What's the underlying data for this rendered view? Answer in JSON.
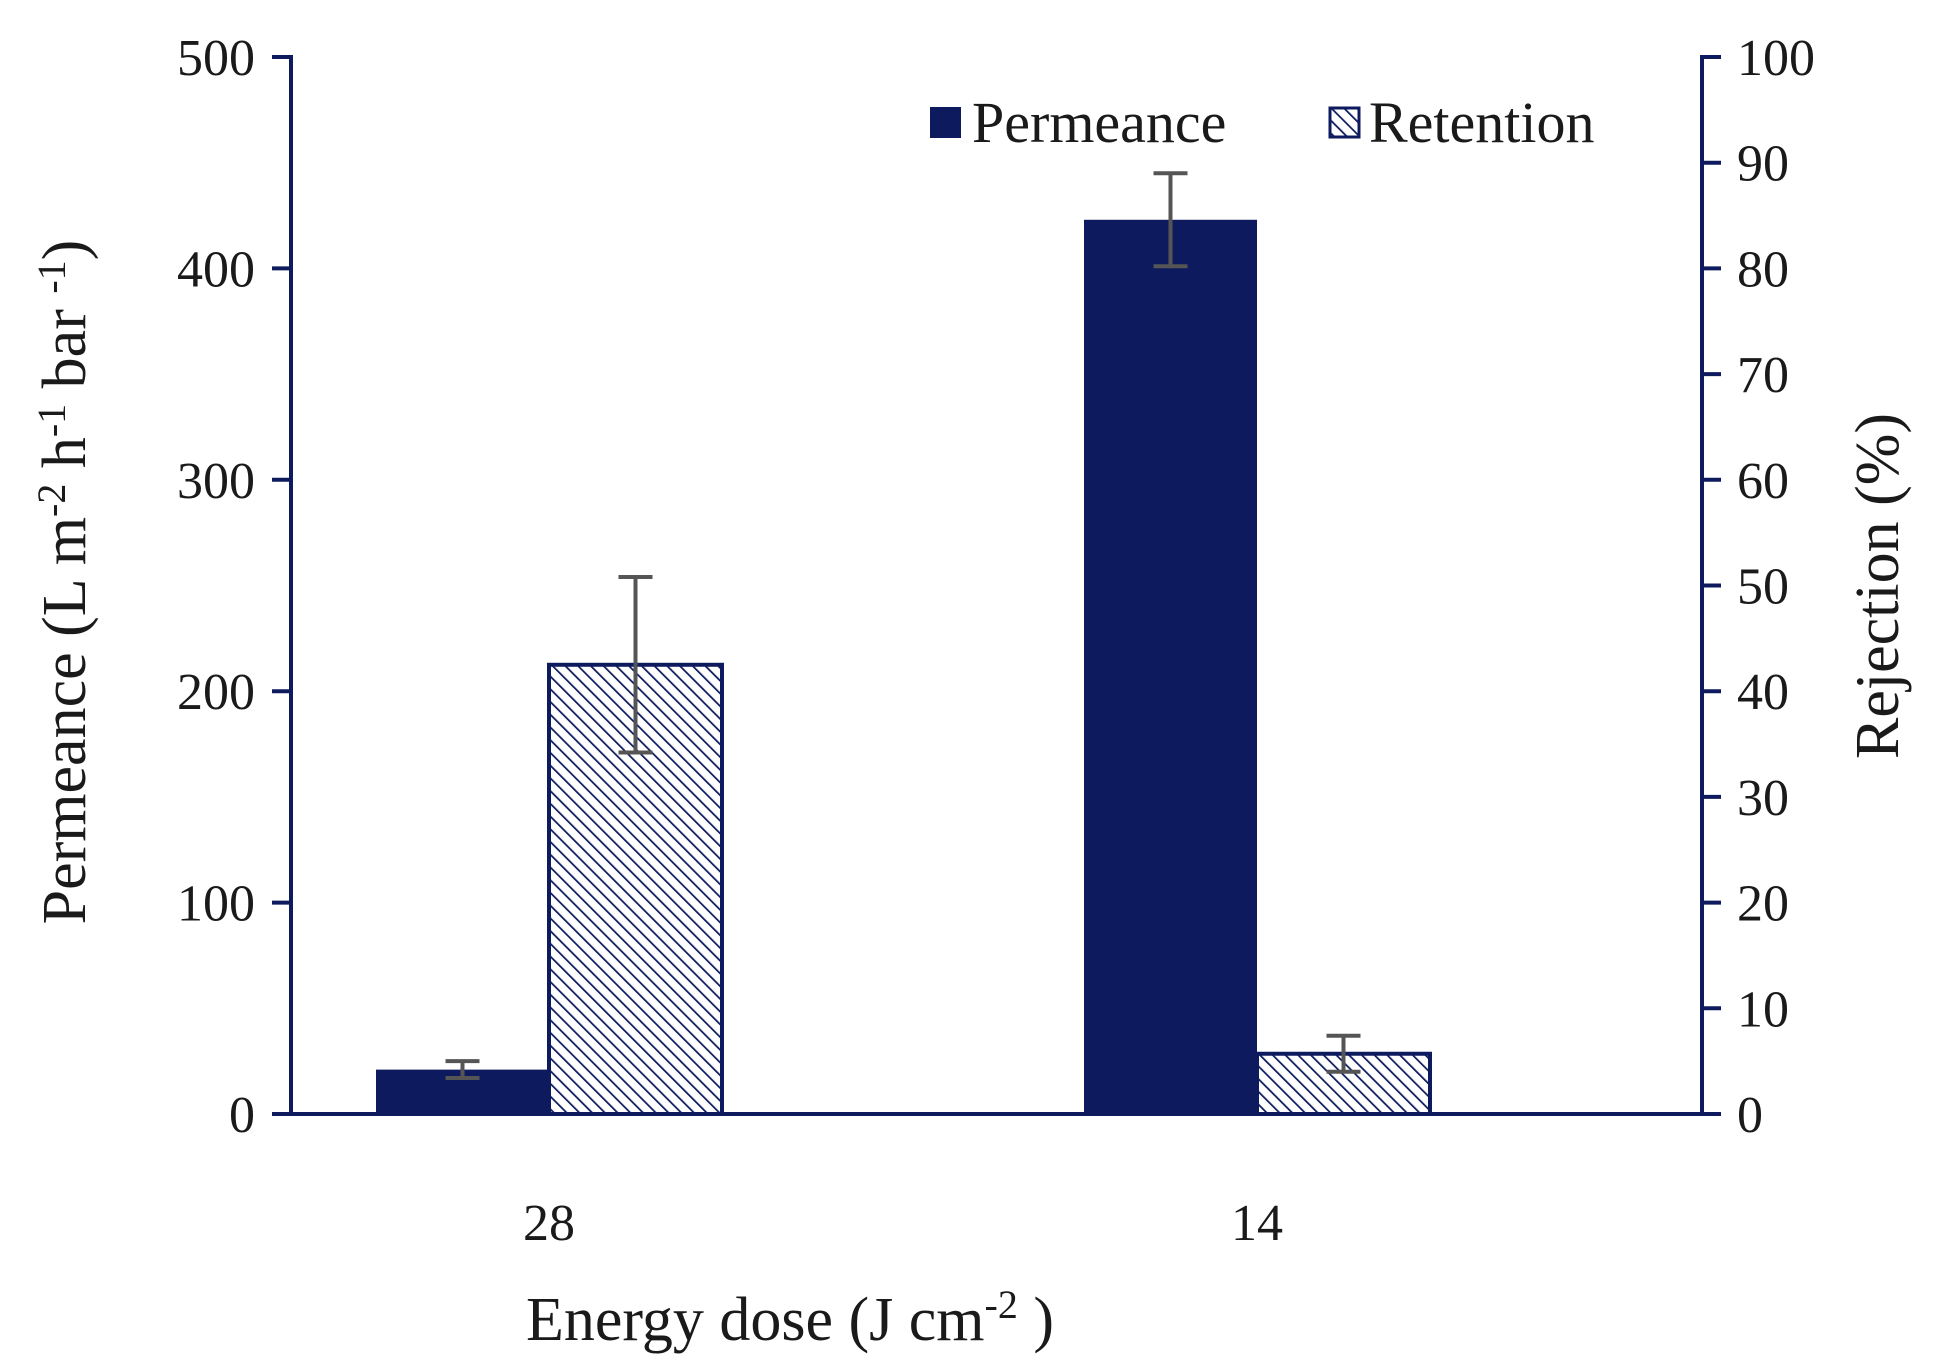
{
  "chart_data": {
    "type": "bar",
    "xlabel": "Energy dose (J cm",
    "xlabel_sup": "-2",
    "xlabel_end": " )",
    "categories": [
      "28",
      "14"
    ],
    "ylabel_left": {
      "base": "Permeance (L m",
      "sup1": "-2",
      "mid1": " h",
      "sup2": "-1",
      "mid2": " bar ",
      "sup3": "-1",
      "end": ")"
    },
    "ylabel_right": "Rejection (%)",
    "ylim_left": [
      0,
      500
    ],
    "yticks_left": [
      "0",
      "100",
      "200",
      "300",
      "400",
      "500"
    ],
    "ylim_right": [
      0,
      100
    ],
    "yticks_right": [
      "0",
      "10",
      "20",
      "30",
      "40",
      "50",
      "60",
      "70",
      "80",
      "90",
      "100"
    ],
    "series": [
      {
        "name": "Permeance",
        "axis": "left",
        "fill": "solid",
        "color": "#0d1b5e",
        "values": [
          21,
          423
        ],
        "errors": [
          4,
          22
        ]
      },
      {
        "name": "Retention",
        "axis": "right",
        "fill": "hatch",
        "color": "#0d1b5e",
        "values": [
          42.5,
          5.7
        ],
        "errors": [
          8.3,
          1.7
        ]
      }
    ],
    "legend_position": "top-right",
    "error_bar_color": "#555555"
  }
}
